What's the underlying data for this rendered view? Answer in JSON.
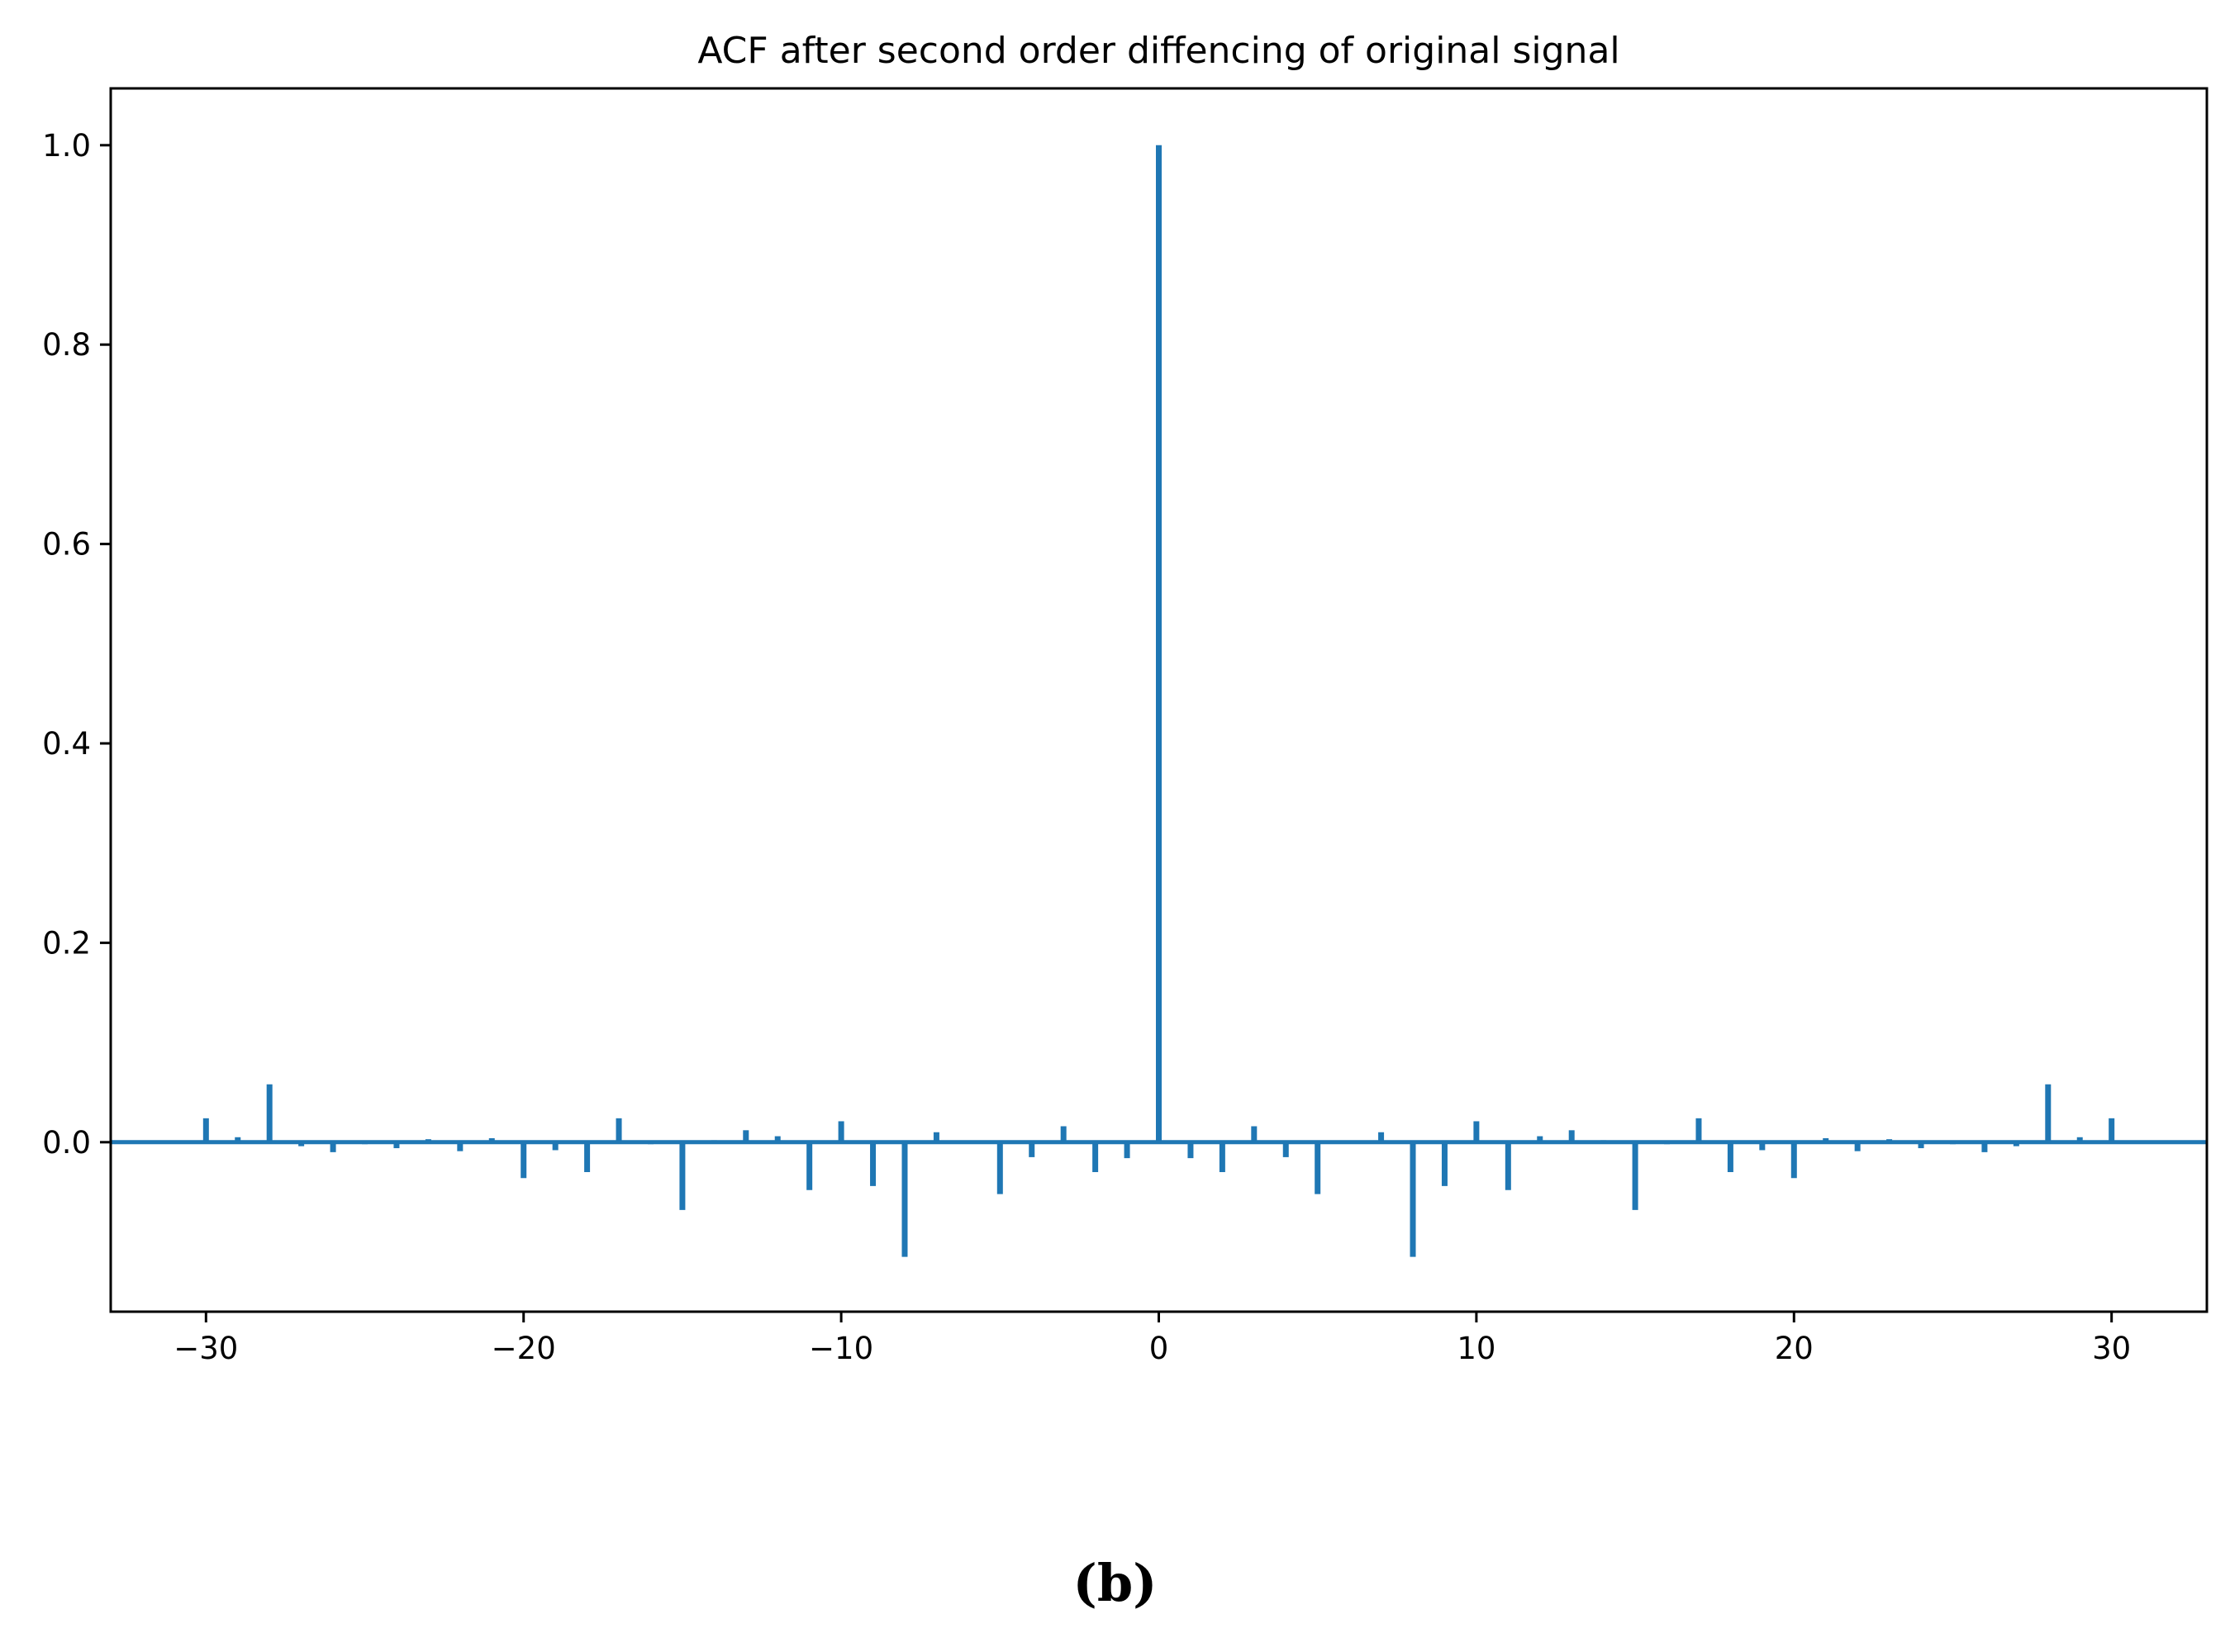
{
  "chart_data": {
    "type": "bar",
    "title": "ACF after second order diffencing of original signal",
    "xlabel": "",
    "ylabel": "",
    "xlim": [
      -33,
      33
    ],
    "ylim": [
      -0.17,
      1.057
    ],
    "xticks": [
      -30,
      -20,
      -10,
      0,
      10,
      20,
      30
    ],
    "xtick_labels": [
      "−30",
      "−20",
      "−10",
      "0",
      "10",
      "20",
      "30"
    ],
    "yticks": [
      0.0,
      0.2,
      0.4,
      0.6,
      0.8,
      1.0
    ],
    "ytick_labels": [
      "0.0",
      "0.2",
      "0.4",
      "0.6",
      "0.8",
      "1.0"
    ],
    "grid": false,
    "color": "#1f77b4",
    "x": [
      -30,
      -29,
      -28,
      -27,
      -26,
      -25,
      -24,
      -23,
      -22,
      -21,
      -20,
      -19,
      -18,
      -17,
      -16,
      -15,
      -14,
      -13,
      -12,
      -11,
      -10,
      -9,
      -8,
      -7,
      -6,
      -5,
      -4,
      -3,
      -2,
      -1,
      0,
      1,
      2,
      3,
      4,
      5,
      6,
      7,
      8,
      9,
      10,
      11,
      12,
      13,
      14,
      15,
      16,
      17,
      18,
      19,
      20,
      21,
      22,
      23,
      24,
      25,
      26,
      27,
      28,
      29,
      30
    ],
    "values": [
      0.024,
      0.005,
      0.058,
      -0.004,
      -0.01,
      -0.002,
      -0.006,
      0.003,
      -0.009,
      0.004,
      -0.036,
      -0.008,
      -0.03,
      0.024,
      -0.002,
      -0.068,
      0.002,
      0.012,
      0.006,
      -0.048,
      0.021,
      -0.044,
      -0.115,
      0.01,
      -0.001,
      -0.052,
      -0.015,
      0.016,
      -0.03,
      -0.016,
      1.0,
      -0.016,
      -0.03,
      0.016,
      -0.015,
      -0.052,
      -0.001,
      0.01,
      -0.115,
      -0.044,
      0.021,
      -0.048,
      0.006,
      0.012,
      0.002,
      -0.068,
      -0.002,
      0.024,
      -0.03,
      -0.008,
      -0.036,
      0.004,
      -0.009,
      0.003,
      -0.006,
      -0.002,
      -0.01,
      -0.004,
      0.058,
      0.005,
      0.024
    ]
  },
  "caption": "(b)"
}
